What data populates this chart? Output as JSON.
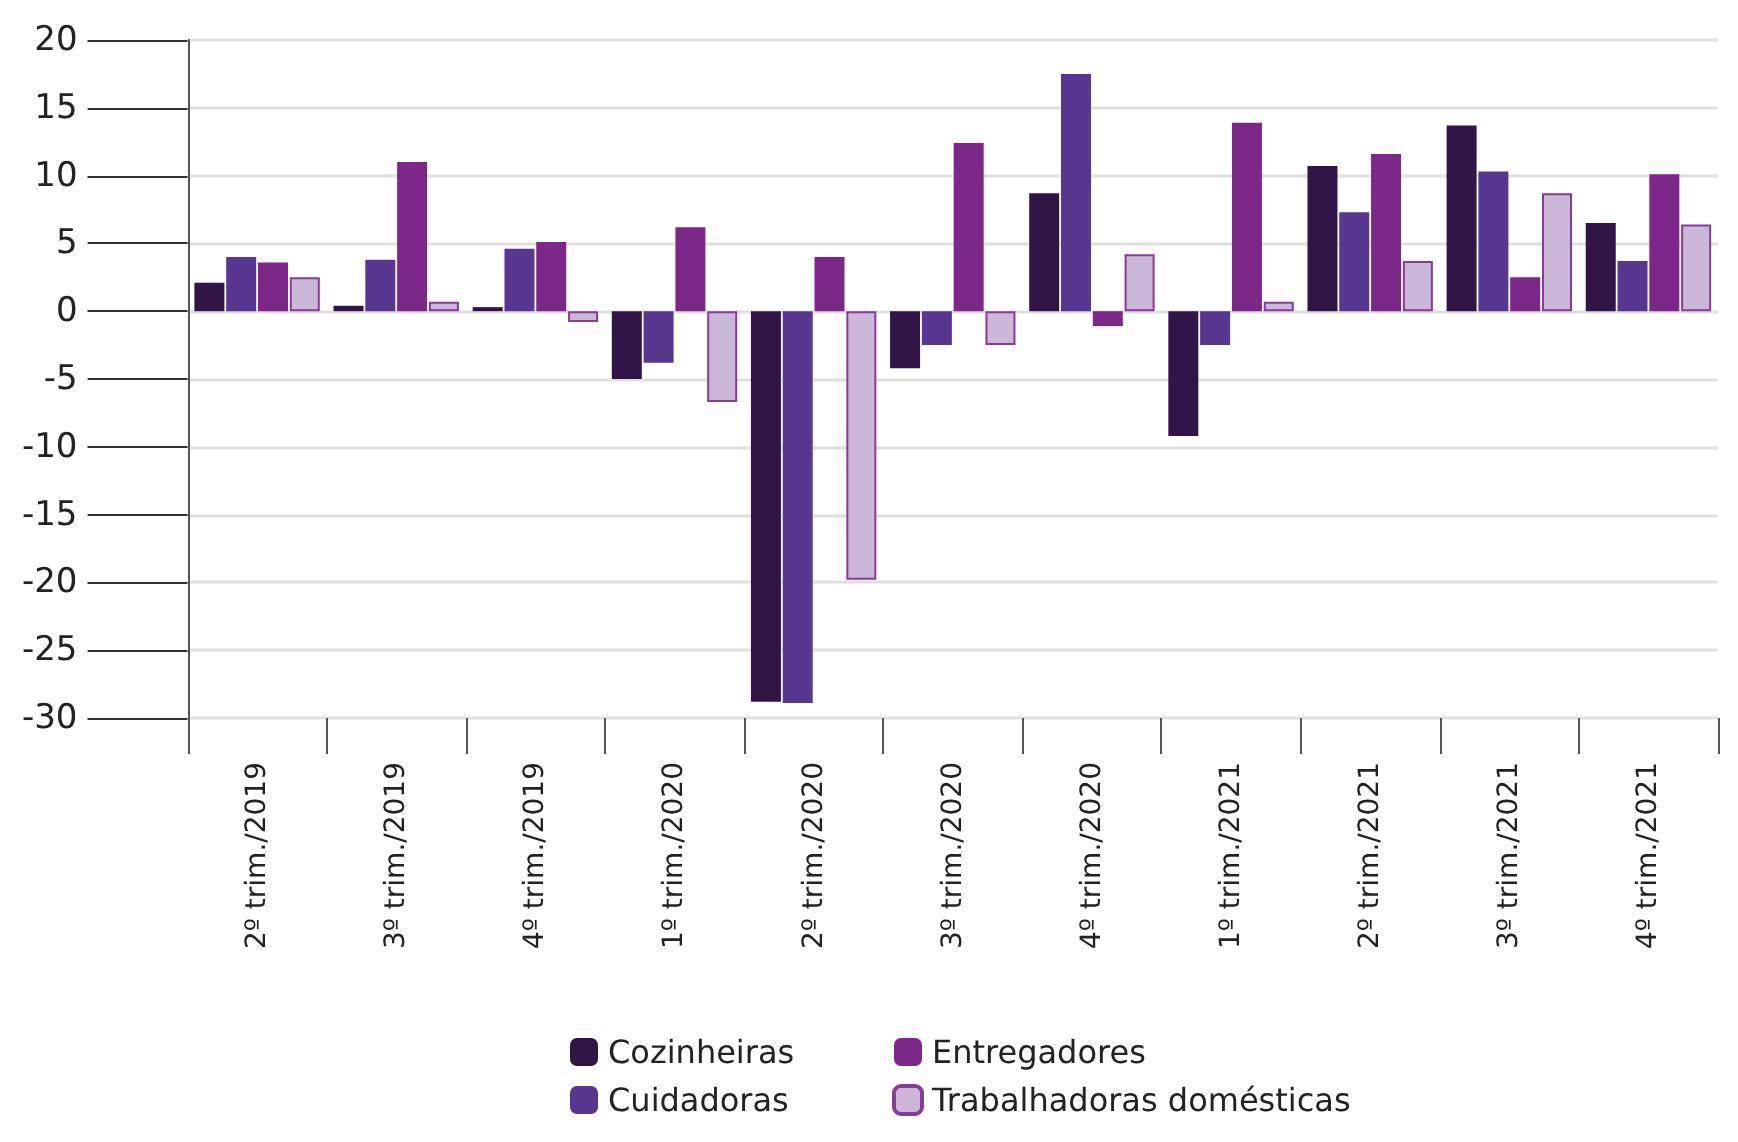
{
  "chart_data": {
    "type": "bar",
    "categories": [
      "2º trim./2019",
      "3º trim./2019",
      "4º trim./2019",
      "1º trim./2020",
      "2º trim./2020",
      "3º trim./2020",
      "4º trim./2020",
      "1º trim./2021",
      "2º trim./2021",
      "3º trim./2021",
      "4º trim./2021"
    ],
    "series": [
      {
        "name": "Cozinheiras",
        "color": "#321547",
        "values": [
          2.1,
          0.4,
          0.3,
          -5.0,
          -28.8,
          -4.2,
          8.7,
          -9.2,
          10.7,
          13.7,
          6.5
        ]
      },
      {
        "name": "Cuidadoras",
        "color": "#583790",
        "values": [
          4.0,
          3.8,
          4.6,
          -3.8,
          -28.9,
          -2.5,
          17.5,
          -2.5,
          7.3,
          10.3,
          3.7
        ]
      },
      {
        "name": "Entregadores",
        "color": "#7b2888",
        "values": [
          3.6,
          11.0,
          5.1,
          6.2,
          4.0,
          12.4,
          -1.1,
          13.9,
          11.6,
          2.5,
          10.1
        ]
      },
      {
        "name": "Trabalhadoras domésticas",
        "color": "#cbb7d8",
        "values": [
          2.5,
          0.7,
          -0.8,
          -6.7,
          -19.8,
          -2.5,
          4.2,
          0.7,
          3.7,
          8.7,
          6.4
        ]
      }
    ],
    "ylim": [
      -30,
      20
    ],
    "yticks": [
      -30,
      -25,
      -20,
      -15,
      -10,
      -5,
      0,
      5,
      10,
      15,
      20
    ],
    "grid": "y",
    "legend": "bottom"
  }
}
